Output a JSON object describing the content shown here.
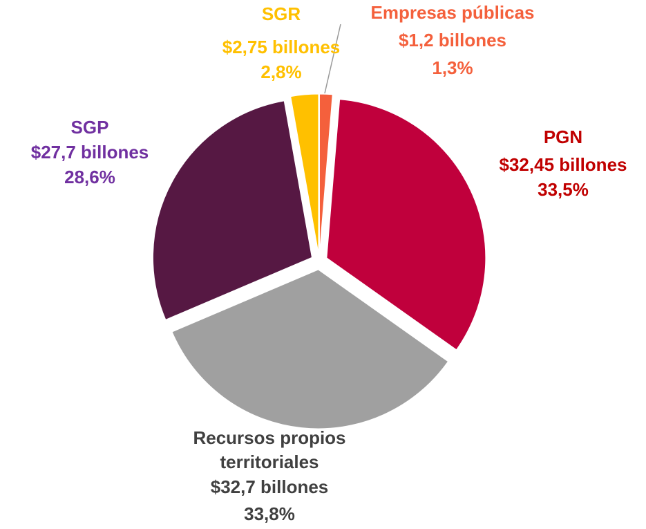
{
  "chart_data": {
    "type": "pie",
    "categories": [
      "Empresas públicas",
      "PGN",
      "Recursos propios territoriales",
      "SGP",
      "SGR"
    ],
    "values": [
      1.3,
      33.5,
      33.8,
      28.6,
      2.8
    ],
    "value_labels": [
      "1,3%",
      "33,5%",
      "33,8%",
      "28,6%",
      "2,8%"
    ],
    "amounts": [
      1.2,
      32.45,
      32.7,
      27.7,
      2.75
    ],
    "amount_labels": [
      "$1,2 billones",
      "$32,45 billones",
      "$32,7 billones",
      "$27,7 billones",
      "$2,75 billones"
    ],
    "colors": [
      "#f4603c",
      "#c0003c",
      "#a0a0a0",
      "#561843",
      "#ffc000"
    ],
    "label_colors": [
      "#f4603c",
      "#c00000",
      "#404040",
      "#7030a0",
      "#ffc000"
    ]
  }
}
